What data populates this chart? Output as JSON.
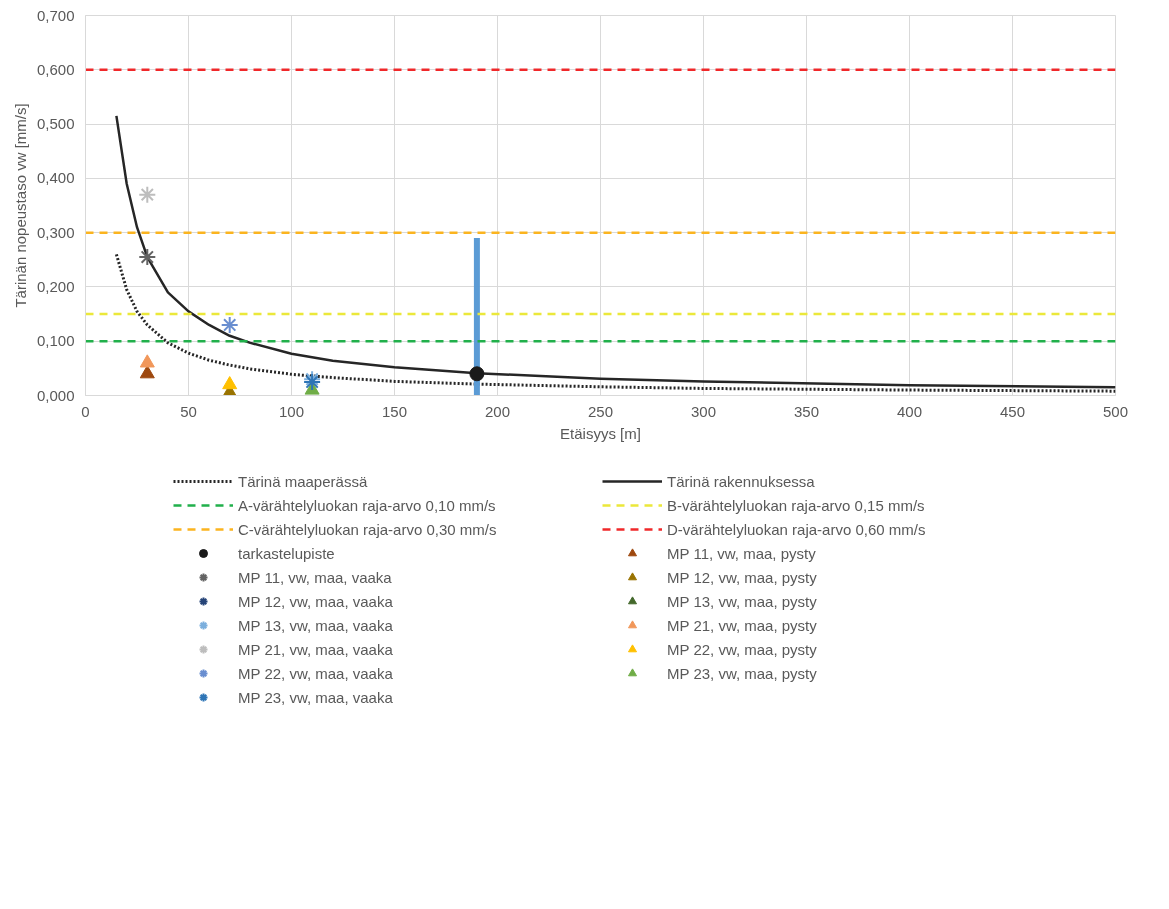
{
  "chart_data": {
    "type": "line",
    "xlabel": "Etäisyys [m]",
    "ylabel": "Tärinän nopeustaso vw [mm/s]",
    "xlim": [
      0,
      500
    ],
    "xticks": [
      0,
      50,
      100,
      150,
      200,
      250,
      300,
      350,
      400,
      450,
      500
    ],
    "ylim": [
      0,
      0.7
    ],
    "yticks": [
      {
        "value": 0,
        "label": "0,000"
      },
      {
        "value": 0.1,
        "label": "0,100"
      },
      {
        "value": 0.2,
        "label": "0,200"
      },
      {
        "value": 0.3,
        "label": "0,300"
      },
      {
        "value": 0.4,
        "label": "0,400"
      },
      {
        "value": 0.5,
        "label": "0,500"
      },
      {
        "value": 0.6,
        "label": "0,600"
      },
      {
        "value": 0.7,
        "label": "0,700"
      }
    ],
    "grid": true,
    "legend": "bottom",
    "series": [
      {
        "name": "Tärinä maaperässä",
        "line_style": "dotted",
        "marker": "none",
        "color": "#262626",
        "x": [
          15,
          20,
          25,
          30,
          40,
          50,
          60,
          70,
          80,
          100,
          120,
          150,
          190,
          250,
          300,
          400,
          500
        ],
        "values": [
          0.26,
          0.195,
          0.155,
          0.13,
          0.097,
          0.078,
          0.065,
          0.056,
          0.049,
          0.039,
          0.033,
          0.026,
          0.021,
          0.016,
          0.013,
          0.01,
          0.008
        ]
      },
      {
        "name": "Tärinä rakennuksessa",
        "line_style": "solid",
        "marker": "none",
        "color": "#262626",
        "x": [
          15,
          20,
          25,
          30,
          40,
          50,
          60,
          70,
          80,
          100,
          120,
          150,
          190,
          250,
          300,
          400,
          500
        ],
        "values": [
          0.515,
          0.39,
          0.31,
          0.255,
          0.19,
          0.155,
          0.13,
          0.11,
          0.097,
          0.077,
          0.064,
          0.052,
          0.041,
          0.031,
          0.026,
          0.019,
          0.015
        ]
      },
      {
        "name": "tarkastelupiste",
        "type": "scatter",
        "marker": "circle",
        "color": "#1a1a1a",
        "x": [
          190
        ],
        "values": [
          0.04
        ],
        "errors": [
          [
            0,
            0.29
          ]
        ]
      },
      {
        "name": "MP 11, vw, maa, pysty",
        "type": "scatter",
        "marker": "triangle",
        "color": "#9e480e",
        "x": [
          30
        ],
        "values": [
          0.04
        ]
      },
      {
        "name": "MP 11, vw, maa, vaaka",
        "type": "scatter",
        "marker": "cross",
        "color": "#636363",
        "x": [
          30
        ],
        "values": [
          0.255
        ]
      },
      {
        "name": "MP 12, vw, maa, pysty",
        "type": "scatter",
        "marker": "triangle",
        "color": "#997300",
        "x": [
          70
        ],
        "values": [
          0.005
        ]
      },
      {
        "name": "MP 12, vw, maa, vaaka",
        "type": "scatter",
        "marker": "cross",
        "color": "#264478"
      },
      {
        "name": "MP 13, vw, maa, pysty",
        "type": "scatter",
        "marker": "triangle",
        "color": "#43682b"
      },
      {
        "name": "MP 13, vw, maa, vaaka",
        "type": "scatter",
        "marker": "cross",
        "color": "#7cafdd",
        "x": [
          110
        ],
        "values": [
          0.03
        ]
      },
      {
        "name": "MP 21, vw, maa, pysty",
        "type": "scatter",
        "marker": "triangle",
        "color": "#f1975a",
        "x": [
          30
        ],
        "values": [
          0.06
        ]
      },
      {
        "name": "MP 21, vw, maa, vaaka",
        "type": "scatter",
        "marker": "cross",
        "color": "#bdbdbd",
        "x": [
          30
        ],
        "values": [
          0.37
        ]
      },
      {
        "name": "MP 22, vw, maa, pysty",
        "type": "scatter",
        "marker": "triangle",
        "color": "#ffc000",
        "x": [
          70
        ],
        "values": [
          0.02
        ]
      },
      {
        "name": "MP 22, vw, maa, vaaka",
        "type": "scatter",
        "marker": "cross",
        "color": "#698ed0",
        "x": [
          70
        ],
        "values": [
          0.13
        ]
      },
      {
        "name": "MP 23, vw, maa, pysty",
        "type": "scatter",
        "marker": "triangle",
        "color": "#70ad47",
        "x": [
          110
        ],
        "values": [
          0.01
        ]
      },
      {
        "name": "MP 23, vw, maa, vaaka",
        "type": "scatter",
        "marker": "cross",
        "color": "#2e75b6",
        "x": [
          110
        ],
        "values": [
          0.025
        ]
      }
    ],
    "ref_lines": [
      {
        "axis": "y",
        "value": 0.1,
        "label": "A-värähtelyluokan raja-arvo 0,10 mm/s",
        "color": "#21b04b",
        "line_style": "dashed"
      },
      {
        "axis": "y",
        "value": 0.15,
        "label": "B-värähtelyluokan raja-arvo 0,15 mm/s",
        "color": "#ebe83a",
        "line_style": "dashed"
      },
      {
        "axis": "y",
        "value": 0.3,
        "label": "C-värähtelyluokan raja-arvo 0,30 mm/s",
        "color": "#fbb41f",
        "line_style": "dashed"
      },
      {
        "axis": "y",
        "value": 0.6,
        "label": "D-värähtelyluokan raja-arvo 0,60 mm/s",
        "color": "#f0282a",
        "line_style": "dashed"
      }
    ]
  }
}
